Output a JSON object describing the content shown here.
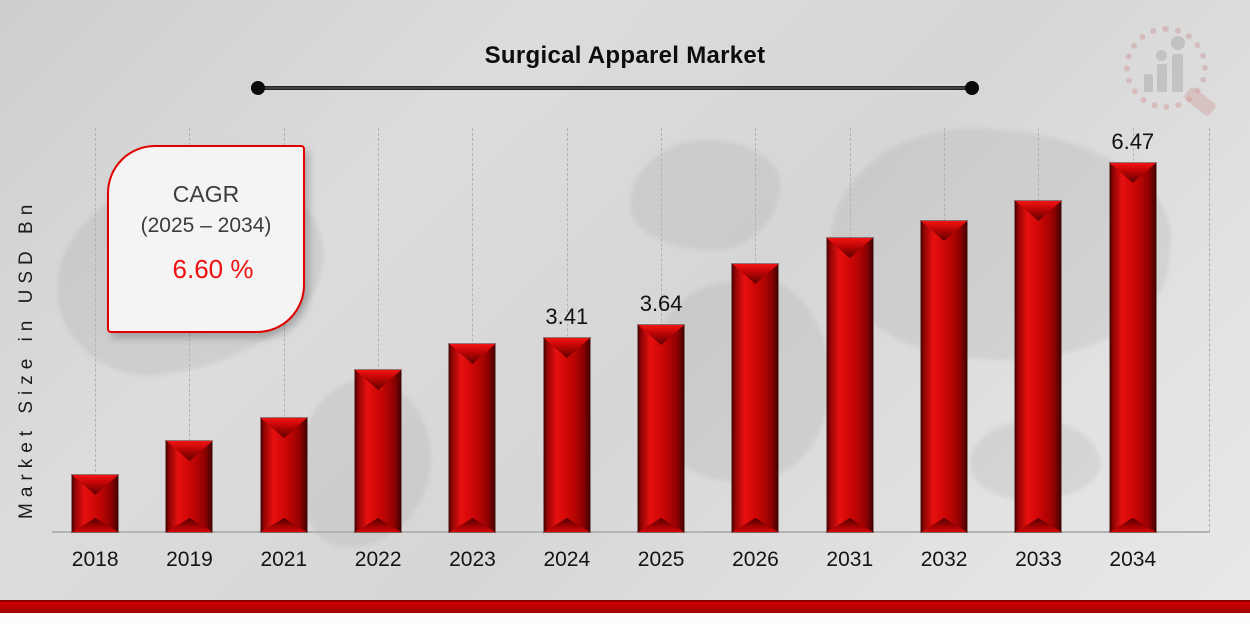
{
  "header": {
    "title": "Surgical Apparel Market"
  },
  "y_axis": {
    "label": "Market Size in USD Bn"
  },
  "cagr_box": {
    "line1": "CAGR",
    "line2": "(2025 – 2034)",
    "value": "6.60 %"
  },
  "chart_data": {
    "type": "bar",
    "title": "Surgical Apparel Market",
    "xlabel": "",
    "ylabel": "Market Size in USD Bn",
    "categories": [
      "2018",
      "2019",
      "2021",
      "2022",
      "2023",
      "2024",
      "2025",
      "2026",
      "2031",
      "2032",
      "2033",
      "2034"
    ],
    "values": [
      1.0,
      1.6,
      2.0,
      2.85,
      3.3,
      3.41,
      3.64,
      4.7,
      5.15,
      5.45,
      5.8,
      6.47
    ],
    "data_labels": {
      "2024": "3.41",
      "2025": "3.64",
      "2034": "6.47"
    },
    "ylim": [
      0,
      7
    ],
    "grid": "vertical-dashed",
    "legend": "none",
    "bar_color": "#cc0000"
  },
  "branding": {
    "logo_icon": "magnifier-bar-chart-watermark"
  },
  "colors": {
    "bar_red": "#cc0000",
    "accent_red": "#e00000",
    "cagr_value_red": "#ee1111",
    "footer_band_red": "#b30000",
    "background_gray": "#d9d9d9",
    "text_dark": "#141414"
  }
}
